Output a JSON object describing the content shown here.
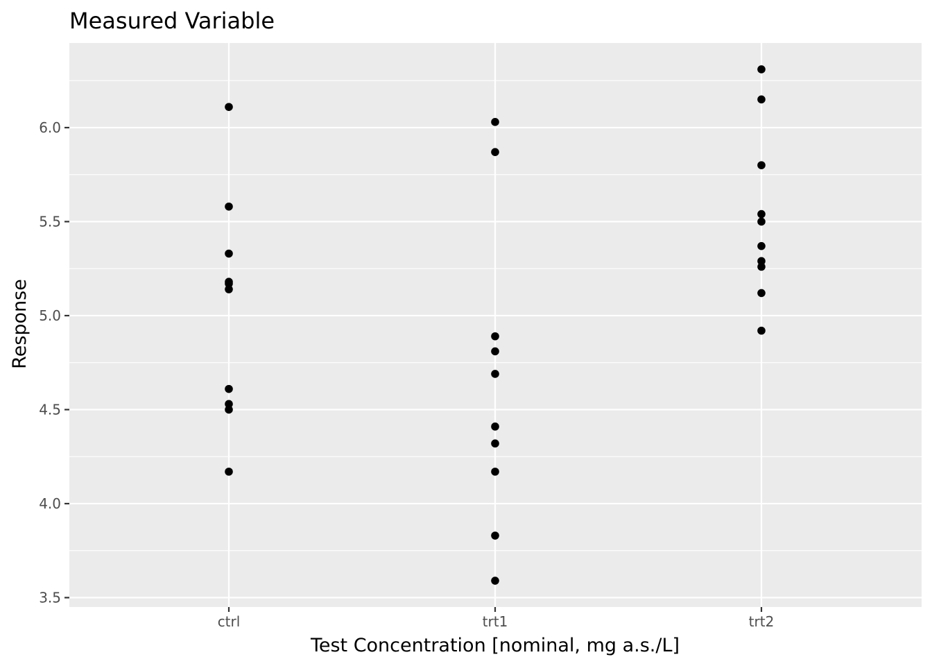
{
  "chart_data": {
    "type": "scatter",
    "title": "Measured Variable",
    "xlabel": "Test Concentration [nominal, mg a.s./L]",
    "ylabel": "Response",
    "categories": [
      "ctrl",
      "trt1",
      "trt2"
    ],
    "ylim": [
      3.45,
      6.45
    ],
    "yticks": [
      "3.5",
      "4.0",
      "4.5",
      "5.0",
      "5.5",
      "6.0"
    ],
    "grid": true,
    "colors": {
      "panel": "#ebebeb",
      "grid": "#ffffff",
      "point": "#000000",
      "tick_text": "#4d4d4d"
    },
    "series": [
      {
        "category": "ctrl",
        "values": [
          6.11,
          5.58,
          5.33,
          5.18,
          5.17,
          5.14,
          4.61,
          4.53,
          4.5,
          4.17
        ]
      },
      {
        "category": "trt1",
        "values": [
          6.03,
          5.87,
          4.89,
          4.81,
          4.69,
          4.41,
          4.32,
          4.17,
          3.83,
          3.59
        ]
      },
      {
        "category": "trt2",
        "values": [
          6.31,
          6.15,
          5.8,
          5.54,
          5.5,
          5.37,
          5.29,
          5.26,
          5.12,
          4.92
        ]
      }
    ]
  }
}
